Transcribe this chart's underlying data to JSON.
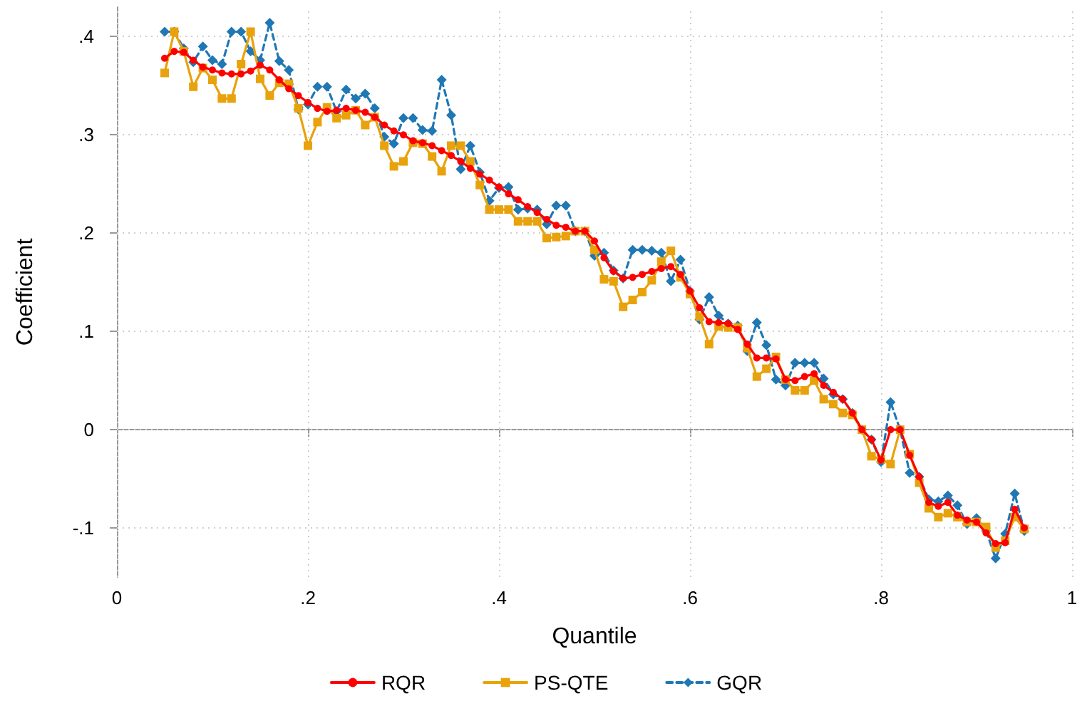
{
  "chart_data": {
    "type": "line",
    "xlabel": "Quantile",
    "ylabel": "Coefficient",
    "x": [
      0.05,
      0.06,
      0.07,
      0.08,
      0.09,
      0.1,
      0.11,
      0.12,
      0.13,
      0.14,
      0.15,
      0.16,
      0.17,
      0.18,
      0.19,
      0.2,
      0.21,
      0.22,
      0.23,
      0.24,
      0.25,
      0.26,
      0.27,
      0.28,
      0.29,
      0.3,
      0.31,
      0.32,
      0.33,
      0.34,
      0.35,
      0.36,
      0.37,
      0.38,
      0.39,
      0.4,
      0.41,
      0.42,
      0.43,
      0.44,
      0.45,
      0.46,
      0.47,
      0.48,
      0.49,
      0.5,
      0.51,
      0.52,
      0.53,
      0.54,
      0.55,
      0.56,
      0.57,
      0.58,
      0.59,
      0.6,
      0.61,
      0.62,
      0.63,
      0.64,
      0.65,
      0.66,
      0.67,
      0.68,
      0.69,
      0.7,
      0.71,
      0.72,
      0.73,
      0.74,
      0.75,
      0.76,
      0.77,
      0.78,
      0.79,
      0.8,
      0.81,
      0.82,
      0.83,
      0.84,
      0.85,
      0.86,
      0.87,
      0.88,
      0.89,
      0.9,
      0.91,
      0.92,
      0.93,
      0.94,
      0.95
    ],
    "series": [
      {
        "name": "RQR",
        "color": "#ff0000",
        "marker": "circle",
        "line_style": "solid",
        "values": [
          0.378,
          0.385,
          0.384,
          0.376,
          0.369,
          0.366,
          0.363,
          0.362,
          0.362,
          0.365,
          0.371,
          0.366,
          0.356,
          0.347,
          0.34,
          0.333,
          0.327,
          0.324,
          0.325,
          0.327,
          0.325,
          0.323,
          0.318,
          0.31,
          0.304,
          0.3,
          0.294,
          0.292,
          0.289,
          0.284,
          0.279,
          0.273,
          0.266,
          0.26,
          0.254,
          0.247,
          0.24,
          0.234,
          0.227,
          0.221,
          0.214,
          0.208,
          0.206,
          0.202,
          0.202,
          0.192,
          0.175,
          0.161,
          0.154,
          0.155,
          0.158,
          0.161,
          0.164,
          0.166,
          0.158,
          0.141,
          0.124,
          0.11,
          0.109,
          0.108,
          0.102,
          0.087,
          0.073,
          0.073,
          0.072,
          0.051,
          0.05,
          0.054,
          0.057,
          0.045,
          0.038,
          0.031,
          0.017,
          0,
          -0.01,
          -0.031,
          0,
          0,
          -0.026,
          -0.048,
          -0.074,
          -0.078,
          -0.074,
          -0.087,
          -0.092,
          -0.094,
          -0.105,
          -0.116,
          -0.115,
          -0.081,
          -0.1
        ]
      },
      {
        "name": "PS-QTE",
        "color": "#e8a20c",
        "marker": "square",
        "line_style": "solid",
        "values": [
          0.363,
          0.405,
          0.385,
          0.349,
          0.368,
          0.356,
          0.337,
          0.337,
          0.372,
          0.405,
          0.357,
          0.34,
          0.353,
          0.352,
          0.327,
          0.289,
          0.313,
          0.328,
          0.317,
          0.32,
          0.325,
          0.31,
          0.318,
          0.289,
          0.268,
          0.273,
          0.292,
          0.291,
          0.278,
          0.263,
          0.289,
          0.289,
          0.273,
          0.249,
          0.224,
          0.224,
          0.224,
          0.212,
          0.212,
          0.212,
          0.195,
          0.196,
          0.197,
          0.202,
          0.202,
          0.183,
          0.153,
          0.151,
          0.125,
          0.132,
          0.14,
          0.152,
          0.171,
          0.182,
          0.155,
          0.138,
          0.115,
          0.087,
          0.105,
          0.104,
          0.104,
          0.083,
          0.054,
          0.062,
          0.074,
          0.051,
          0.04,
          0.04,
          0.05,
          0.031,
          0.026,
          0.017,
          0.015,
          0,
          -0.027,
          -0.03,
          -0.035,
          0,
          -0.025,
          -0.054,
          -0.08,
          -0.089,
          -0.085,
          -0.089,
          -0.094,
          -0.094,
          -0.099,
          -0.12,
          -0.113,
          -0.089,
          -0.101
        ]
      },
      {
        "name": "GQR",
        "color": "#1f77b4",
        "marker": "diamond",
        "line_style": "dashed",
        "values": [
          0.405,
          0.405,
          0.388,
          0.374,
          0.39,
          0.376,
          0.372,
          0.405,
          0.405,
          0.385,
          0.376,
          0.414,
          0.375,
          0.366,
          0.326,
          0.331,
          0.349,
          0.349,
          0.324,
          0.346,
          0.337,
          0.342,
          0.327,
          0.298,
          0.291,
          0.317,
          0.317,
          0.305,
          0.304,
          0.356,
          0.32,
          0.265,
          0.289,
          0.262,
          0.233,
          0.246,
          0.247,
          0.224,
          0.225,
          0.224,
          0.209,
          0.228,
          0.228,
          0.202,
          0.202,
          0.177,
          0.18,
          0.162,
          0.154,
          0.183,
          0.183,
          0.182,
          0.18,
          0.151,
          0.173,
          0.141,
          0.112,
          0.135,
          0.116,
          0.108,
          0.106,
          0.08,
          0.109,
          0.086,
          0.051,
          0.045,
          0.068,
          0.068,
          0.068,
          0.052,
          0.036,
          0.031,
          0.017,
          0,
          -0.01,
          -0.033,
          0.028,
          0,
          -0.044,
          -0.048,
          -0.071,
          -0.073,
          -0.067,
          -0.077,
          -0.096,
          -0.09,
          -0.103,
          -0.131,
          -0.106,
          -0.065,
          -0.103
        ]
      }
    ],
    "xlim": [
      0,
      1
    ],
    "xticks": [
      0,
      {
        "value": 0.2,
        "label": ".2"
      },
      {
        "value": 0.4,
        "label": ".4"
      },
      {
        "value": 0.6,
        "label": ".6"
      },
      {
        "value": 0.8,
        "label": ".8"
      },
      1
    ],
    "ylim": [
      -0.15,
      0.43
    ],
    "yticks": [
      {
        "value": -0.1,
        "label": "-.1"
      },
      0,
      {
        "value": 0.1,
        "label": ".1"
      },
      {
        "value": 0.2,
        "label": ".2"
      },
      {
        "value": 0.3,
        "label": ".3"
      },
      {
        "value": 0.4,
        "label": ".4"
      }
    ],
    "grid": true,
    "legend": "bottom"
  }
}
